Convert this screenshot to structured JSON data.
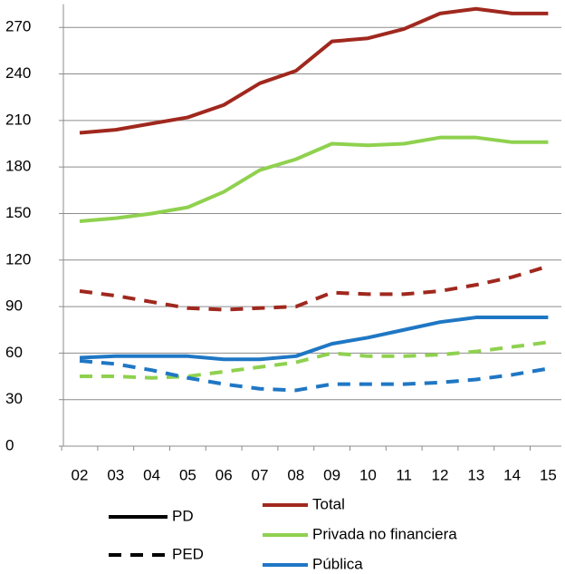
{
  "chart_data": {
    "type": "line",
    "categories": [
      "02",
      "03",
      "04",
      "05",
      "06",
      "07",
      "08",
      "09",
      "10",
      "11",
      "12",
      "13",
      "14",
      "15"
    ],
    "ylim": [
      0,
      285
    ],
    "yticks": [
      0,
      30,
      60,
      90,
      120,
      150,
      180,
      210,
      240,
      270
    ],
    "grid": true,
    "styles": [
      "PD",
      "PED"
    ],
    "series": [
      {
        "name": "Total",
        "color": "#a0281e",
        "PD": [
          202,
          204,
          208,
          212,
          220,
          234,
          242,
          261,
          263,
          269,
          279,
          282,
          279,
          279
        ],
        "PED": [
          100,
          97,
          93,
          89,
          88,
          89,
          90,
          99,
          98,
          98,
          100,
          104,
          109,
          116
        ]
      },
      {
        "name": "Privada no financiera",
        "color": "#8fd14f",
        "PD": [
          145,
          147,
          150,
          154,
          164,
          178,
          185,
          195,
          194,
          195,
          199,
          199,
          196,
          196
        ],
        "PED": [
          45,
          45,
          44,
          45,
          48,
          51,
          54,
          60,
          58,
          58,
          59,
          61,
          64,
          67
        ]
      },
      {
        "name": "Pública",
        "color": "#1f77c4",
        "PD": [
          57,
          58,
          58,
          58,
          56,
          56,
          58,
          66,
          70,
          75,
          80,
          83,
          83,
          83
        ],
        "PED": [
          55,
          53,
          49,
          44,
          40,
          37,
          36,
          40,
          40,
          40,
          41,
          43,
          46,
          50
        ]
      }
    ]
  }
}
